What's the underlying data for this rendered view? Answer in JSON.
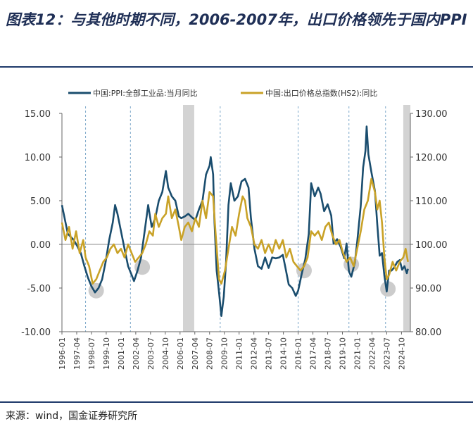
{
  "title": "图表12：与其他时期不同，2006-2007年，出口价格领先于国内PPI",
  "source": "来源：wind，国金证券研究所",
  "colors": {
    "ppi": "#1a4d6e",
    "export": "#c9a227",
    "shade": "#d3d3d3",
    "circle": "#cccccc",
    "vline": "#7ba7c9",
    "zero": "#8c8c8c",
    "axis": "#666666"
  },
  "chart_data": {
    "type": "line",
    "title": "图表12：与其他时期不同，2006-2007年，出口价格领先于国内PPI",
    "legend_position": "top",
    "grid": false,
    "x_range": [
      1996.0,
      2025.5
    ],
    "x_ticks": [
      "1996-01",
      "1997-04",
      "1998-07",
      "1999-10",
      "2001-01",
      "2002-04",
      "2003-07",
      "2004-10",
      "2006-01",
      "2007-04",
      "2008-07",
      "2009-10",
      "2011-01",
      "2012-04",
      "2013-07",
      "2014-10",
      "2016-01",
      "2017-04",
      "2018-07",
      "2019-10",
      "2021-01",
      "2022-04",
      "2023-07",
      "2024-10"
    ],
    "y_left": {
      "range": [
        -10,
        15
      ],
      "ticks": [
        "-10.00",
        "-5.00",
        "0.00",
        "5.00",
        "10.00",
        "15.00"
      ]
    },
    "y_right": {
      "range": [
        80,
        130
      ],
      "ticks": [
        "80.00",
        "90.00",
        "100.00",
        "110.00",
        "120.00",
        "130.00"
      ]
    },
    "shaded_periods": [
      [
        2006.25,
        2007.2
      ],
      [
        2024.9,
        2025.5
      ]
    ],
    "dashed_markers": [
      1998.0,
      2001.8,
      2009.4,
      2016.0,
      2020.3,
      2023.4
    ],
    "highlight_circles": [
      {
        "x": 1998.9,
        "y_left": -5.3
      },
      {
        "x": 2002.8,
        "y_left": -2.6
      },
      {
        "x": 2016.5,
        "y_left": -3.0
      },
      {
        "x": 2020.5,
        "y_left": -2.3
      },
      {
        "x": 2023.6,
        "y_left": -5.1
      }
    ],
    "series": [
      {
        "name": "中国:PPI:全部工业品:当月同比",
        "axis": "left",
        "points": [
          [
            1996.0,
            4.5
          ],
          [
            1996.5,
            1.2
          ],
          [
            1997.0,
            0.5
          ],
          [
            1997.3,
            -0.2
          ],
          [
            1997.6,
            -1.0
          ],
          [
            1997.9,
            -2.5
          ],
          [
            1998.2,
            -3.8
          ],
          [
            1998.5,
            -4.8
          ],
          [
            1998.8,
            -5.5
          ],
          [
            1999.1,
            -5.0
          ],
          [
            1999.4,
            -4.0
          ],
          [
            1999.7,
            -2.0
          ],
          [
            2000.0,
            0.5
          ],
          [
            2000.3,
            2.5
          ],
          [
            2000.5,
            4.5
          ],
          [
            2000.7,
            3.5
          ],
          [
            2001.0,
            1.5
          ],
          [
            2001.3,
            -0.5
          ],
          [
            2001.6,
            -2.5
          ],
          [
            2001.9,
            -3.5
          ],
          [
            2002.1,
            -4.2
          ],
          [
            2002.4,
            -3.0
          ],
          [
            2002.7,
            -1.5
          ],
          [
            2003.0,
            1.5
          ],
          [
            2003.3,
            4.5
          ],
          [
            2003.6,
            2.0
          ],
          [
            2003.9,
            3.0
          ],
          [
            2004.2,
            5.0
          ],
          [
            2004.5,
            6.0
          ],
          [
            2004.8,
            8.4
          ],
          [
            2005.0,
            6.5
          ],
          [
            2005.3,
            5.5
          ],
          [
            2005.6,
            5.0
          ],
          [
            2005.9,
            3.2
          ],
          [
            2006.1,
            3.0
          ],
          [
            2006.4,
            3.2
          ],
          [
            2006.7,
            3.5
          ],
          [
            2007.0,
            3.1
          ],
          [
            2007.3,
            2.8
          ],
          [
            2007.6,
            4.0
          ],
          [
            2007.9,
            5.0
          ],
          [
            2008.2,
            8.0
          ],
          [
            2008.5,
            9.0
          ],
          [
            2008.6,
            10.0
          ],
          [
            2008.8,
            8.0
          ],
          [
            2008.9,
            3.0
          ],
          [
            2009.1,
            -3.0
          ],
          [
            2009.3,
            -5.5
          ],
          [
            2009.5,
            -8.2
          ],
          [
            2009.7,
            -6.0
          ],
          [
            2009.9,
            -2.0
          ],
          [
            2010.1,
            4.5
          ],
          [
            2010.3,
            7.0
          ],
          [
            2010.6,
            5.0
          ],
          [
            2010.9,
            5.5
          ],
          [
            2011.2,
            7.2
          ],
          [
            2011.5,
            7.5
          ],
          [
            2011.8,
            6.5
          ],
          [
            2012.0,
            3.0
          ],
          [
            2012.3,
            -0.5
          ],
          [
            2012.6,
            -2.5
          ],
          [
            2012.9,
            -2.8
          ],
          [
            2013.2,
            -1.5
          ],
          [
            2013.5,
            -2.7
          ],
          [
            2013.8,
            -1.5
          ],
          [
            2014.1,
            -1.6
          ],
          [
            2014.4,
            -1.5
          ],
          [
            2014.7,
            -1.2
          ],
          [
            2014.9,
            -2.5
          ],
          [
            2015.2,
            -4.6
          ],
          [
            2015.5,
            -5.0
          ],
          [
            2015.8,
            -5.9
          ],
          [
            2016.0,
            -5.3
          ],
          [
            2016.3,
            -3.4
          ],
          [
            2016.6,
            -1.7
          ],
          [
            2016.9,
            1.2
          ],
          [
            2017.1,
            7.0
          ],
          [
            2017.4,
            5.5
          ],
          [
            2017.7,
            6.5
          ],
          [
            2017.9,
            5.8
          ],
          [
            2018.2,
            3.8
          ],
          [
            2018.5,
            4.6
          ],
          [
            2018.8,
            3.3
          ],
          [
            2019.0,
            0.1
          ],
          [
            2019.3,
            0.6
          ],
          [
            2019.6,
            -0.3
          ],
          [
            2019.9,
            -1.6
          ],
          [
            2020.1,
            0.1
          ],
          [
            2020.3,
            -3.1
          ],
          [
            2020.5,
            -3.7
          ],
          [
            2020.8,
            -2.1
          ],
          [
            2021.0,
            0.3
          ],
          [
            2021.3,
            4.4
          ],
          [
            2021.5,
            8.8
          ],
          [
            2021.7,
            10.7
          ],
          [
            2021.8,
            13.5
          ],
          [
            2021.95,
            10.3
          ],
          [
            2022.2,
            8.3
          ],
          [
            2022.5,
            6.1
          ],
          [
            2022.7,
            2.3
          ],
          [
            2022.9,
            -1.3
          ],
          [
            2023.1,
            -1.0
          ],
          [
            2023.3,
            -3.6
          ],
          [
            2023.5,
            -5.4
          ],
          [
            2023.7,
            -3.0
          ],
          [
            2023.9,
            -3.0
          ],
          [
            2024.1,
            -2.7
          ],
          [
            2024.4,
            -2.0
          ],
          [
            2024.6,
            -1.8
          ],
          [
            2024.8,
            -2.9
          ],
          [
            2025.0,
            -2.5
          ],
          [
            2025.2,
            -3.3
          ],
          [
            2025.3,
            -2.8
          ]
        ]
      },
      {
        "name": "中国:出口价格总指数(HS2):同比",
        "axis": "right",
        "points": [
          [
            1996.0,
            105
          ],
          [
            1996.3,
            101
          ],
          [
            1996.6,
            104
          ],
          [
            1996.9,
            99
          ],
          [
            1997.2,
            103
          ],
          [
            1997.5,
            98
          ],
          [
            1997.8,
            101
          ],
          [
            1998.0,
            97
          ],
          [
            1998.3,
            95
          ],
          [
            1998.6,
            91
          ],
          [
            1998.9,
            92
          ],
          [
            1999.2,
            94
          ],
          [
            1999.5,
            96
          ],
          [
            1999.8,
            97
          ],
          [
            2000.1,
            99
          ],
          [
            2000.4,
            100
          ],
          [
            2000.7,
            98
          ],
          [
            2001.0,
            99
          ],
          [
            2001.3,
            97
          ],
          [
            2001.6,
            100
          ],
          [
            2001.9,
            98
          ],
          [
            2002.2,
            96
          ],
          [
            2002.5,
            97
          ],
          [
            2002.8,
            98
          ],
          [
            2003.1,
            100
          ],
          [
            2003.4,
            103
          ],
          [
            2003.7,
            102
          ],
          [
            2003.9,
            107
          ],
          [
            2004.2,
            104
          ],
          [
            2004.5,
            106
          ],
          [
            2004.8,
            107
          ],
          [
            2005.0,
            111
          ],
          [
            2005.3,
            106
          ],
          [
            2005.6,
            108
          ],
          [
            2005.9,
            104
          ],
          [
            2006.1,
            101
          ],
          [
            2006.4,
            104
          ],
          [
            2006.7,
            105
          ],
          [
            2007.0,
            103
          ],
          [
            2007.3,
            106
          ],
          [
            2007.6,
            104
          ],
          [
            2007.9,
            110
          ],
          [
            2008.2,
            106
          ],
          [
            2008.5,
            112
          ],
          [
            2008.8,
            111
          ],
          [
            2009.0,
            103
          ],
          [
            2009.3,
            92
          ],
          [
            2009.5,
            91
          ],
          [
            2009.8,
            94
          ],
          [
            2010.1,
            99
          ],
          [
            2010.4,
            104
          ],
          [
            2010.7,
            102
          ],
          [
            2011.0,
            107
          ],
          [
            2011.3,
            111
          ],
          [
            2011.5,
            110
          ],
          [
            2011.7,
            106
          ],
          [
            2012.0,
            104
          ],
          [
            2012.3,
            100
          ],
          [
            2012.6,
            99
          ],
          [
            2012.9,
            101
          ],
          [
            2013.2,
            98
          ],
          [
            2013.5,
            100
          ],
          [
            2013.8,
            98
          ],
          [
            2014.1,
            101
          ],
          [
            2014.4,
            99
          ],
          [
            2014.7,
            101
          ],
          [
            2015.0,
            97
          ],
          [
            2015.3,
            99
          ],
          [
            2015.6,
            96
          ],
          [
            2015.9,
            95
          ],
          [
            2016.2,
            94
          ],
          [
            2016.5,
            95
          ],
          [
            2016.8,
            97
          ],
          [
            2017.1,
            103
          ],
          [
            2017.4,
            102
          ],
          [
            2017.7,
            103
          ],
          [
            2018.0,
            101
          ],
          [
            2018.3,
            104
          ],
          [
            2018.6,
            105
          ],
          [
            2018.9,
            102
          ],
          [
            2019.2,
            100
          ],
          [
            2019.5,
            101
          ],
          [
            2019.8,
            98
          ],
          [
            2020.1,
            96
          ],
          [
            2020.4,
            97
          ],
          [
            2020.7,
            95
          ],
          [
            2021.0,
            99
          ],
          [
            2021.3,
            103
          ],
          [
            2021.6,
            108
          ],
          [
            2021.9,
            110
          ],
          [
            2022.2,
            115
          ],
          [
            2022.5,
            112
          ],
          [
            2022.7,
            108
          ],
          [
            2022.9,
            110
          ],
          [
            2023.1,
            105
          ],
          [
            2023.3,
            97
          ],
          [
            2023.5,
            92
          ],
          [
            2023.7,
            93
          ],
          [
            2024.0,
            96
          ],
          [
            2024.3,
            94
          ],
          [
            2024.6,
            96
          ],
          [
            2024.9,
            97
          ],
          [
            2025.1,
            99
          ],
          [
            2025.3,
            96
          ]
        ]
      }
    ]
  }
}
